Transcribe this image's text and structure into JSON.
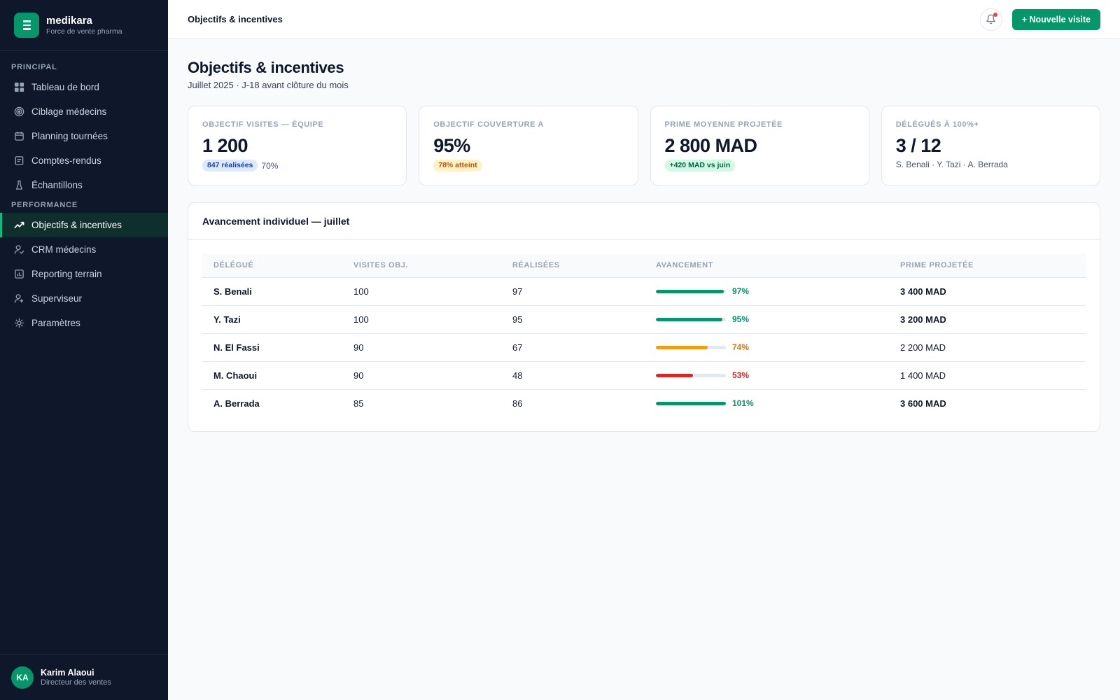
{
  "brand": {
    "name": "medikara",
    "tagline": "Force de vente pharma"
  },
  "sidebar": {
    "sections": [
      {
        "title": "PRINCIPAL",
        "items": [
          {
            "label": "Tableau de bord",
            "icon": "dashboard-grid-icon"
          },
          {
            "label": "Ciblage médecins",
            "icon": "target-icon"
          },
          {
            "label": "Planning tournées",
            "icon": "calendar-icon"
          },
          {
            "label": "Comptes-rendus",
            "icon": "report-document-icon"
          },
          {
            "label": "Échantillons",
            "icon": "flask-icon"
          }
        ]
      },
      {
        "title": "PERFORMANCE",
        "items": [
          {
            "label": "Objectifs & incentives",
            "icon": "trend-chart-icon",
            "active": true
          },
          {
            "label": "CRM médecins",
            "icon": "user-check-icon"
          },
          {
            "label": "Reporting terrain",
            "icon": "bar-chart-icon"
          },
          {
            "label": "Superviseur",
            "icon": "user-cog-icon"
          },
          {
            "label": "Paramètres",
            "icon": "settings-sun-icon"
          }
        ]
      }
    ]
  },
  "user": {
    "initials": "KA",
    "name": "Karim Alaoui",
    "role": "Directeur des ventes"
  },
  "topbar": {
    "title": "Objectifs & incentives",
    "new_visit_label": "+ Nouvelle visite"
  },
  "page": {
    "title": "Objectifs & incentives",
    "subtitle": "Juillet 2025 · J-18 avant clôture du mois"
  },
  "kpis": [
    {
      "label": "OBJECTIF VISITES — ÉQUIPE",
      "value": "1 200",
      "badge": "847 réalisées",
      "badge_tone": "blue",
      "note": "70%"
    },
    {
      "label": "OBJECTIF COUVERTURE A",
      "value": "95%",
      "badge": "78% atteint",
      "badge_tone": "amber",
      "note": ""
    },
    {
      "label": "PRIME MOYENNE PROJETÉE",
      "value": "2 800 MAD",
      "badge": "+420 MAD vs juin",
      "badge_tone": "green",
      "note": ""
    },
    {
      "label": "DÉLÉGUÉS À 100%+",
      "value": "3 / 12",
      "badge": "",
      "badge_tone": "",
      "note": "S. Benali · Y. Tazi · A. Berrada"
    }
  ],
  "table": {
    "title": "Avancement individuel — juillet",
    "headers": [
      "DÉLÉGUÉ",
      "VISITES OBJ.",
      "RÉALISÉES",
      "AVANCEMENT",
      "PRIME PROJETÉE"
    ],
    "rows": [
      {
        "name": "S. Benali",
        "objective": "100",
        "done": "97",
        "progress": 97,
        "progress_label": "97%",
        "tone": "green",
        "prime": "3 400 MAD",
        "prime_bold": true
      },
      {
        "name": "Y. Tazi",
        "objective": "100",
        "done": "95",
        "progress": 95,
        "progress_label": "95%",
        "tone": "green",
        "prime": "3 200 MAD",
        "prime_bold": true
      },
      {
        "name": "N. El Fassi",
        "objective": "90",
        "done": "67",
        "progress": 74,
        "progress_label": "74%",
        "tone": "amber",
        "prime": "2 200 MAD",
        "prime_bold": false
      },
      {
        "name": "M. Chaoui",
        "objective": "90",
        "done": "48",
        "progress": 53,
        "progress_label": "53%",
        "tone": "red",
        "prime": "1 400 MAD",
        "prime_bold": false
      },
      {
        "name": "A. Berrada",
        "objective": "85",
        "done": "86",
        "progress": 101,
        "progress_label": "101%",
        "tone": "green",
        "prime": "3 600 MAD",
        "prime_bold": true
      }
    ]
  },
  "colors": {
    "green": "#059669",
    "amber": "#f59e0b",
    "red": "#dc2626",
    "green_text": "#059669",
    "amber_text": "#d97706",
    "red_text": "#dc2626"
  }
}
